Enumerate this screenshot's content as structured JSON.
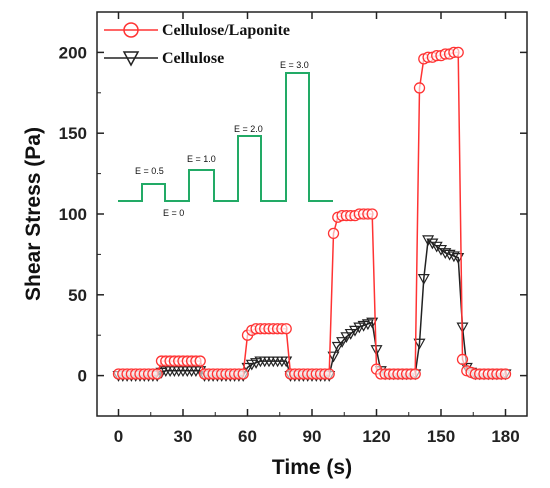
{
  "chart_data": {
    "type": "line",
    "xlabel": "Time (s)",
    "ylabel": "Shear Stress (Pa)",
    "xlim": [
      -10,
      190
    ],
    "ylim": [
      -25,
      225
    ],
    "xticks": [
      0,
      30,
      60,
      90,
      120,
      150,
      180
    ],
    "yticks": [
      0,
      50,
      100,
      150,
      200
    ],
    "legend": {
      "placement": "top-left-inside"
    },
    "series": [
      {
        "name": "Cellulose/Laponite",
        "color": "#ff3333",
        "marker": "circle",
        "x": [
          0,
          2,
          4,
          6,
          8,
          10,
          12,
          14,
          16,
          18,
          20,
          22,
          24,
          26,
          28,
          30,
          32,
          34,
          36,
          38,
          40,
          42,
          44,
          46,
          48,
          50,
          52,
          54,
          56,
          58,
          60,
          62,
          64,
          66,
          68,
          70,
          72,
          74,
          76,
          78,
          80,
          82,
          84,
          86,
          88,
          90,
          92,
          94,
          96,
          98,
          100,
          102,
          104,
          106,
          108,
          110,
          112,
          114,
          116,
          118,
          120,
          122,
          124,
          126,
          128,
          130,
          132,
          134,
          136,
          138,
          140,
          142,
          144,
          146,
          148,
          150,
          152,
          154,
          156,
          158,
          160,
          162,
          164,
          166,
          168,
          170,
          172,
          174,
          176,
          178,
          180
        ],
        "y": [
          1,
          1,
          1,
          1,
          1,
          1,
          1,
          1,
          1,
          1,
          9,
          9,
          9,
          9,
          9,
          9,
          9,
          9,
          9,
          9,
          1,
          1,
          1,
          1,
          1,
          1,
          1,
          1,
          1,
          1,
          25,
          28,
          29,
          29,
          29,
          29,
          29,
          29,
          29,
          29,
          1,
          1,
          1,
          1,
          1,
          1,
          1,
          1,
          1,
          1,
          88,
          98,
          99,
          99,
          99,
          99,
          100,
          100,
          100,
          100,
          4,
          1,
          1,
          1,
          1,
          1,
          1,
          1,
          1,
          1,
          178,
          196,
          197,
          197,
          198,
          198,
          199,
          199,
          200,
          200,
          10,
          3,
          2,
          1,
          1,
          1,
          1,
          1,
          1,
          1,
          1
        ]
      },
      {
        "name": "Cellulose",
        "color": "#222222",
        "marker": "triangle-down",
        "x": [
          0,
          2,
          4,
          6,
          8,
          10,
          12,
          14,
          16,
          18,
          20,
          22,
          24,
          26,
          28,
          30,
          32,
          34,
          36,
          38,
          40,
          42,
          44,
          46,
          48,
          50,
          52,
          54,
          56,
          58,
          60,
          62,
          64,
          66,
          68,
          70,
          72,
          74,
          76,
          78,
          80,
          82,
          84,
          86,
          88,
          90,
          92,
          94,
          96,
          98,
          100,
          102,
          104,
          106,
          108,
          110,
          112,
          114,
          116,
          118,
          120,
          122,
          124,
          126,
          128,
          130,
          132,
          134,
          136,
          138,
          140,
          142,
          144,
          146,
          148,
          150,
          152,
          154,
          156,
          158,
          160,
          162,
          164,
          166,
          168,
          170,
          172,
          174,
          176,
          178,
          180
        ],
        "y": [
          0,
          0,
          0,
          0,
          0,
          0,
          0,
          0,
          0,
          0,
          2,
          3,
          3,
          3,
          3,
          3,
          3,
          3,
          3,
          3,
          0,
          0,
          0,
          0,
          0,
          0,
          0,
          0,
          0,
          0,
          5,
          7,
          8,
          9,
          9,
          9,
          9,
          9,
          9,
          9,
          0,
          0,
          0,
          0,
          0,
          0,
          0,
          0,
          0,
          0,
          12,
          18,
          21,
          24,
          26,
          28,
          30,
          31,
          32,
          33,
          16,
          3,
          1,
          1,
          1,
          1,
          1,
          1,
          1,
          1,
          20,
          60,
          84,
          82,
          80,
          78,
          76,
          75,
          74,
          73,
          30,
          5,
          2,
          1,
          1,
          1,
          1,
          1,
          1,
          1,
          1
        ]
      }
    ],
    "inset": {
      "color": "#22aa66",
      "labels": [
        "E = 0.5",
        "E = 1.0",
        "E = 2.0",
        "E = 3.0",
        "E = 0"
      ]
    }
  }
}
